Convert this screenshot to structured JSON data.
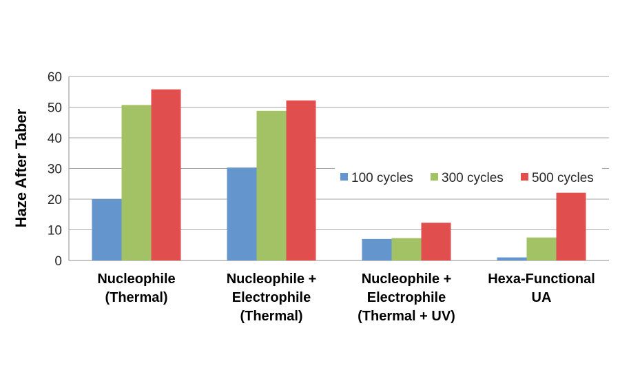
{
  "chart_data": {
    "type": "bar",
    "title": "",
    "xlabel": "",
    "ylabel": "Haze After Taber",
    "ylim": [
      0,
      60
    ],
    "yticks": [
      0,
      10,
      20,
      30,
      40,
      50,
      60
    ],
    "grid": true,
    "legend_position": "right",
    "categories": [
      [
        "Nucleophile",
        "(Thermal)"
      ],
      [
        "Nucleophile +",
        "Electrophile",
        "(Thermal)"
      ],
      [
        "Nucleophile +",
        "Electrophile",
        "(Thermal + UV)"
      ],
      [
        "Hexa-Functional",
        "UA"
      ]
    ],
    "series": [
      {
        "name": "100 cycles",
        "color": "#6495cd",
        "values": [
          20,
          30.3,
          7,
          1
        ]
      },
      {
        "name": "300 cycles",
        "color": "#a3c266",
        "values": [
          50.7,
          48.8,
          7.3,
          7.5
        ]
      },
      {
        "name": "500 cycles",
        "color": "#e04e4e",
        "values": [
          55.8,
          52.2,
          12.3,
          22.1
        ]
      }
    ]
  }
}
